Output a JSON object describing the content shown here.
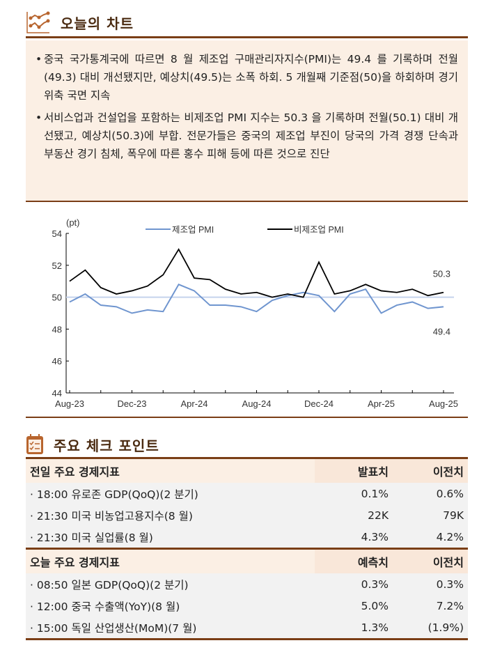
{
  "section1": {
    "title": "오늘의 차트",
    "icon": "line-chart-icon"
  },
  "summary": [
    "중국 국가통계국에 따르면 8 월 제조업 구매관리자지수(PMI)는 49.4 를 기록하며 전월(49.3) 대비 개선됐지만, 예상치(49.5)는 소폭 하회. 5 개월째 기준점(50)을 하회하며 경기 위축 국면 지속",
    "서비스업과 건설업을 포함하는 비제조업 PMI 지수는 50.3 을 기록하며 전월(50.1) 대비 개선됐고, 예상치(50.3)에 부합. 전문가들은 중국의 제조업 부진이 당국의 가격 경쟁 단속과 부동산 경기 침체, 폭우에 따른 홍수 피해 등에 따른 것으로 진단"
  ],
  "chart_data": {
    "type": "line",
    "ylabel": "(pt)",
    "ylim": [
      44,
      54
    ],
    "yticks": [
      "44",
      "46",
      "48",
      "50",
      "52",
      "54"
    ],
    "xticks": [
      "Aug-23",
      "Dec-23",
      "Apr-24",
      "Aug-24",
      "Dec-24",
      "Apr-25",
      "Aug-25"
    ],
    "x": [
      "2023-08",
      "2023-09",
      "2023-10",
      "2023-11",
      "2023-12",
      "2024-01",
      "2024-02",
      "2024-03",
      "2024-04",
      "2024-05",
      "2024-06",
      "2024-07",
      "2024-08",
      "2024-09",
      "2024-10",
      "2024-11",
      "2024-12",
      "2025-01",
      "2025-02",
      "2025-03",
      "2025-04",
      "2025-05",
      "2025-06",
      "2025-07",
      "2025-08"
    ],
    "reference_line": 50,
    "legend_placement": "top",
    "series": [
      {
        "name": "제조업 PMI",
        "color": "#6f95cf",
        "values": [
          49.7,
          50.2,
          49.5,
          49.4,
          49.0,
          49.2,
          49.1,
          50.8,
          50.4,
          49.5,
          49.5,
          49.4,
          49.1,
          49.8,
          50.1,
          50.3,
          50.1,
          49.1,
          50.2,
          50.5,
          49.0,
          49.5,
          49.7,
          49.3,
          49.4
        ],
        "end_label": "49.4"
      },
      {
        "name": "비제조업 PMI",
        "color": "#000000",
        "values": [
          51.0,
          51.7,
          50.6,
          50.2,
          50.4,
          50.7,
          51.4,
          53.0,
          51.2,
          51.1,
          50.5,
          50.2,
          50.3,
          50.0,
          50.2,
          50.0,
          52.2,
          50.2,
          50.4,
          50.8,
          50.4,
          50.3,
          50.5,
          50.1,
          50.3
        ],
        "end_label": "50.3"
      }
    ]
  },
  "section2": {
    "title": "주요 체크 포인트",
    "icon": "checklist-calendar-icon"
  },
  "yesterday": {
    "header": [
      "전일 주요 경제지표",
      "발표치",
      "이전치"
    ],
    "rows": [
      [
        "· 18:00 유로존 GDP(QoQ)(2 분기)",
        "0.1%",
        "0.6%"
      ],
      [
        "· 21:30 미국 비농업고용지수(8 월)",
        "22K",
        "79K"
      ],
      [
        "· 21:30 미국 실업률(8 월)",
        "4.3%",
        "4.2%"
      ]
    ]
  },
  "today": {
    "header": [
      "오늘 주요 경제지표",
      "예측치",
      "이전치"
    ],
    "rows": [
      [
        "· 08:50 일본 GDP(QoQ)(2 분기)",
        "0.3%",
        "0.3%"
      ],
      [
        "· 12:00 중국 수출액(YoY)(8 월)",
        "5.0%",
        "7.2%"
      ],
      [
        "· 15:00 독일 산업생산(MoM)(7 월)",
        "1.3%",
        "(1.9%)"
      ]
    ]
  },
  "colors": {
    "accent": "#7a3e16",
    "box_bg": "#fbefe4",
    "icon": "#b8652e"
  }
}
